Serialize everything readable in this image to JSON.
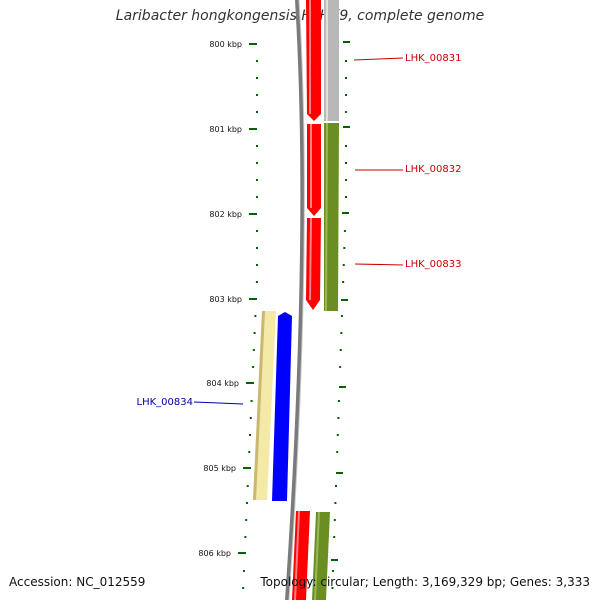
{
  "title": "Laribacter hongkongensis HLHK9, complete genome",
  "accession": "Accession: NC_012559",
  "summary": "Topology: circular; Length: 3,169,329 bp; Genes: 3,333",
  "ruler": {
    "labels": [
      "800 kbp",
      "801 kbp",
      "802 kbp",
      "803 kbp",
      "804 kbp",
      "805 kbp",
      "806 kbp"
    ]
  },
  "genes": [
    {
      "name": "LHK_00831",
      "color": "#cc0000"
    },
    {
      "name": "LHK_00832",
      "color": "#cc0000"
    },
    {
      "name": "LHK_00833",
      "color": "#cc0000"
    },
    {
      "name": "LHK_00834",
      "color": "#0000aa"
    }
  ],
  "colors": {
    "backbone": "#808080",
    "cds": "#ff0000",
    "grey_feature": "#b8b8b8",
    "green_feature": "#6b8e23",
    "pale_feature": "#f5e9a8",
    "blue_feature": "#0000ff",
    "ticks": "#006400"
  }
}
